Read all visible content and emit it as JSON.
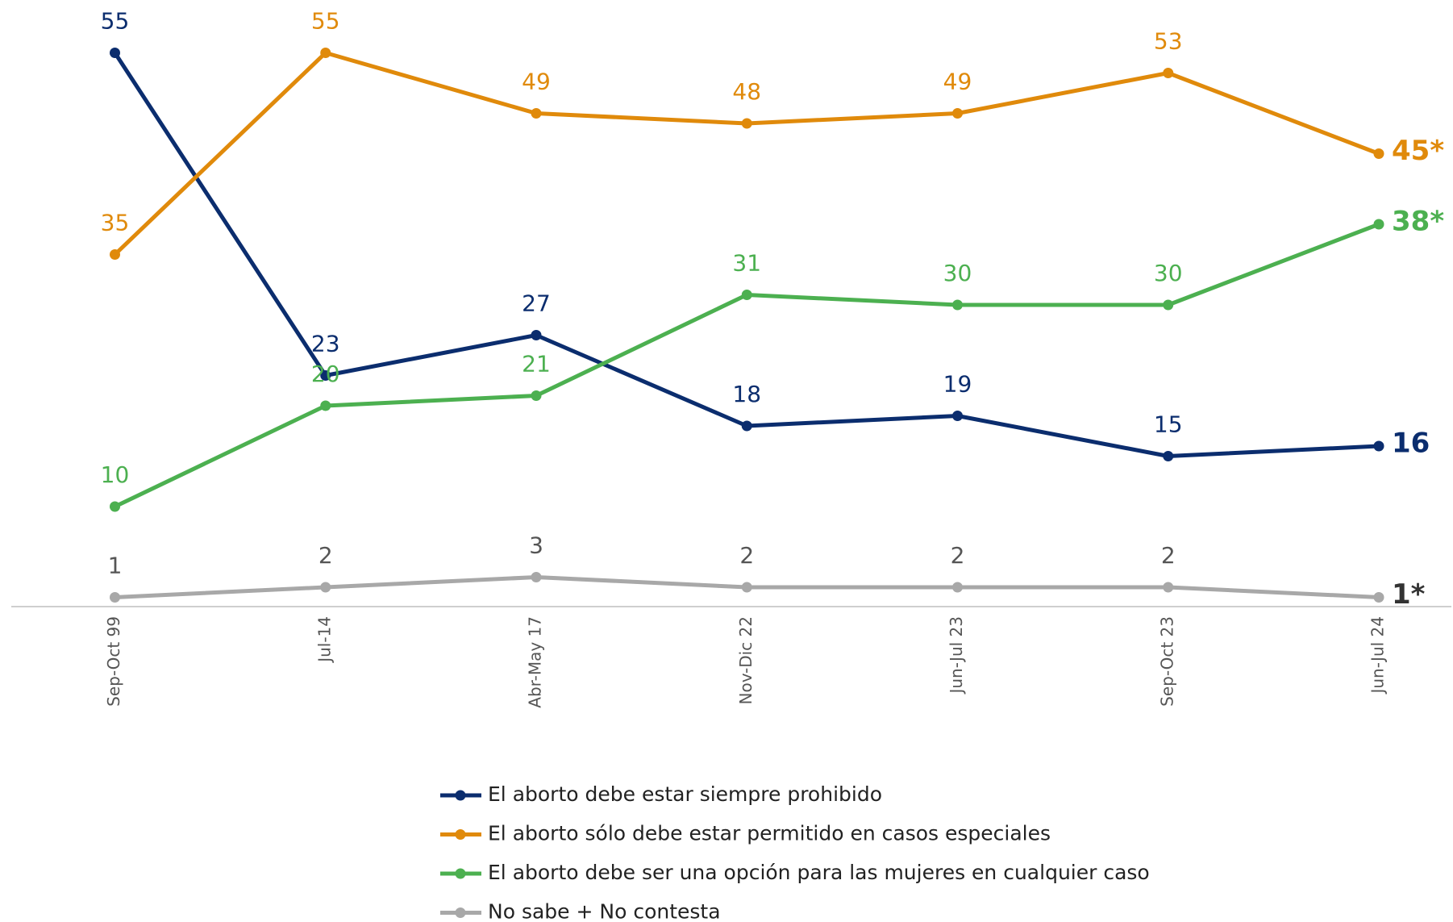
{
  "chart_data": {
    "type": "line",
    "categories": [
      "Sep-Oct 99",
      "Jul-14",
      "Abr-May 17",
      "Nov-Dic 22",
      "Jun-Jul 23",
      "Sep-Oct 23",
      "Jun-Jul 24"
    ],
    "ylim": [
      0,
      55
    ],
    "series": [
      {
        "name": "El aborto debe estar siempre prohibido",
        "color": "#0b2d6e",
        "values": [
          55,
          23,
          27,
          18,
          19,
          15,
          16
        ],
        "value_labels": [
          "55",
          "23",
          "27",
          "18",
          "19",
          "15",
          "16"
        ]
      },
      {
        "name": "El aborto sólo debe estar permitido en casos especiales",
        "color": "#e08a0b",
        "values": [
          35,
          55,
          49,
          48,
          49,
          53,
          45
        ],
        "value_labels": [
          "35",
          "55",
          "49",
          "48",
          "49",
          "53",
          "45*"
        ]
      },
      {
        "name": "El aborto debe ser una opción para las mujeres en cualquier caso",
        "color": "#4cb050",
        "values": [
          10,
          20,
          21,
          31,
          30,
          30,
          38
        ],
        "value_labels": [
          "10",
          "20",
          "21",
          "31",
          "30",
          "30",
          "38*"
        ]
      },
      {
        "name": "No sabe + No contesta",
        "color": "#a8a8a8",
        "values": [
          1,
          2,
          3,
          2,
          2,
          2,
          1
        ],
        "value_labels": [
          "1",
          "2",
          "3",
          "2",
          "2",
          "2",
          "1*"
        ]
      }
    ]
  }
}
